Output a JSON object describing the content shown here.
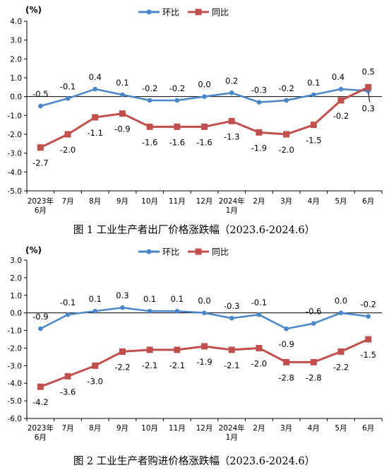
{
  "chart_data": [
    {
      "type": "line",
      "title": "图 1 工业生产者出厂价格涨跌幅（2023.6-2024.6）",
      "unit": "(%)",
      "categories": [
        "2023年\n6月",
        "7月",
        "8月",
        "9月",
        "10月",
        "11月",
        "12月",
        "2024年\n1月",
        "2月",
        "3月",
        "4月",
        "5月",
        "6月"
      ],
      "ylim": [
        -5.0,
        4.0
      ],
      "yticks": [
        "4.0",
        "3.0",
        "2.0",
        "1.0",
        "0.0",
        "-1.0",
        "-2.0",
        "-3.0",
        "-4.0",
        "-5.0"
      ],
      "legend_position": "top-center",
      "grid": false,
      "series": [
        {
          "name": "环比",
          "color": "#4a86c8",
          "marker": "circle",
          "values": [
            -0.5,
            -0.1,
            0.4,
            0.1,
            -0.2,
            -0.2,
            0.0,
            0.2,
            -0.3,
            -0.2,
            0.1,
            0.4,
            0.3
          ],
          "labels": [
            "-0.5",
            "-0.1",
            "0.4",
            "0.1",
            "-0.2",
            "-0.2",
            "0.0",
            "0.2",
            "-0.3",
            "-0.2",
            "0.1",
            "0.4",
            "0.3"
          ]
        },
        {
          "name": "同比",
          "color": "#c0504d",
          "marker": "square",
          "values": [
            -2.7,
            -2.0,
            -1.1,
            -0.9,
            -1.6,
            -1.6,
            -1.6,
            -1.3,
            -1.9,
            -2.0,
            -1.5,
            -0.2,
            0.5
          ],
          "labels": [
            "-2.7",
            "-2.0",
            "-1.1",
            "-0.9",
            "-1.6",
            "-1.6",
            "-1.6",
            "-1.3",
            "-1.9",
            "-2.0",
            "-1.5",
            "-0.2",
            "0.5"
          ]
        }
      ]
    },
    {
      "type": "line",
      "title": "图 2 工业生产者购进价格涨跌幅（2023.6-2024.6）",
      "unit": "(%)",
      "categories": [
        "2023年\n6月",
        "7月",
        "8月",
        "9月",
        "10月",
        "11月",
        "12月",
        "2024年\n1月",
        "2月",
        "3月",
        "4月",
        "5月",
        "6月"
      ],
      "ylim": [
        -6.0,
        3.0
      ],
      "yticks": [
        "3.0",
        "2.0",
        "1.0",
        "0.0",
        "-1.0",
        "-2.0",
        "-3.0",
        "-4.0",
        "-5.0",
        "-6.0"
      ],
      "legend_position": "top-center",
      "grid": false,
      "series": [
        {
          "name": "环比",
          "color": "#4a86c8",
          "marker": "circle",
          "values": [
            -0.9,
            -0.1,
            0.1,
            0.3,
            0.1,
            0.1,
            0.0,
            -0.3,
            -0.1,
            -0.9,
            -0.6,
            0.0,
            -0.2
          ],
          "labels": [
            "-0.9",
            "-0.1",
            "0.1",
            "0.3",
            "0.1",
            "0.1",
            "0.0",
            "-0.3",
            "-0.1",
            "-0.9",
            "-0.6",
            "0.0",
            "-0.2"
          ]
        },
        {
          "name": "同比",
          "color": "#c0504d",
          "marker": "square",
          "values": [
            -4.2,
            -3.6,
            -3.0,
            -2.2,
            -2.1,
            -2.1,
            -1.9,
            -2.1,
            -2.0,
            -2.8,
            -2.8,
            -2.2,
            -1.5
          ],
          "labels": [
            "-4.2",
            "-3.6",
            "-3.0",
            "-2.2",
            "-2.1",
            "-2.1",
            "-1.9",
            "-2.1",
            "-2.0",
            "-2.8",
            "-2.8",
            "-2.2",
            "-1.5"
          ]
        }
      ]
    }
  ]
}
